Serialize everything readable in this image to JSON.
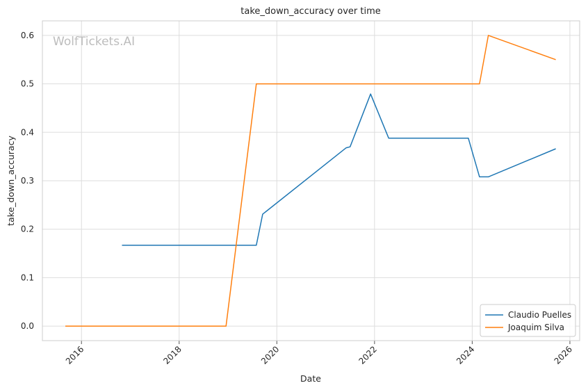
{
  "chart_data": {
    "type": "line",
    "title": "take_down_accuracy over time",
    "xlabel": "Date",
    "ylabel": "take_down_accuracy",
    "watermark": "WolfTickets.AI",
    "xlim": [
      2015.2,
      2026.2
    ],
    "ylim": [
      -0.03,
      0.63
    ],
    "xticks": [
      2016,
      2018,
      2020,
      2022,
      2024,
      2026
    ],
    "xtick_labels": [
      "2016",
      "2018",
      "2020",
      "2022",
      "2024",
      "2026"
    ],
    "yticks": [
      0.0,
      0.1,
      0.2,
      0.3,
      0.4,
      0.5,
      0.6
    ],
    "ytick_labels": [
      "0.0",
      "0.1",
      "0.2",
      "0.3",
      "0.4",
      "0.5",
      "0.6"
    ],
    "grid": true,
    "legend_position": "bottom-right",
    "series": [
      {
        "name": "Claudio Puelles",
        "color": "#1f77b4",
        "x": [
          2016.83,
          2019.58,
          2019.71,
          2021.42,
          2021.5,
          2021.92,
          2022.29,
          2023.92,
          2024.15,
          2024.33,
          2025.71
        ],
        "y": [
          0.167,
          0.167,
          0.231,
          0.368,
          0.37,
          0.479,
          0.388,
          0.388,
          0.308,
          0.308,
          0.366
        ]
      },
      {
        "name": "Joaquim Silva",
        "color": "#ff7f0e",
        "x": [
          2015.67,
          2018.96,
          2019.58,
          2024.15,
          2024.33,
          2025.71
        ],
        "y": [
          0.0,
          0.0,
          0.5,
          0.5,
          0.6,
          0.55
        ]
      }
    ]
  }
}
